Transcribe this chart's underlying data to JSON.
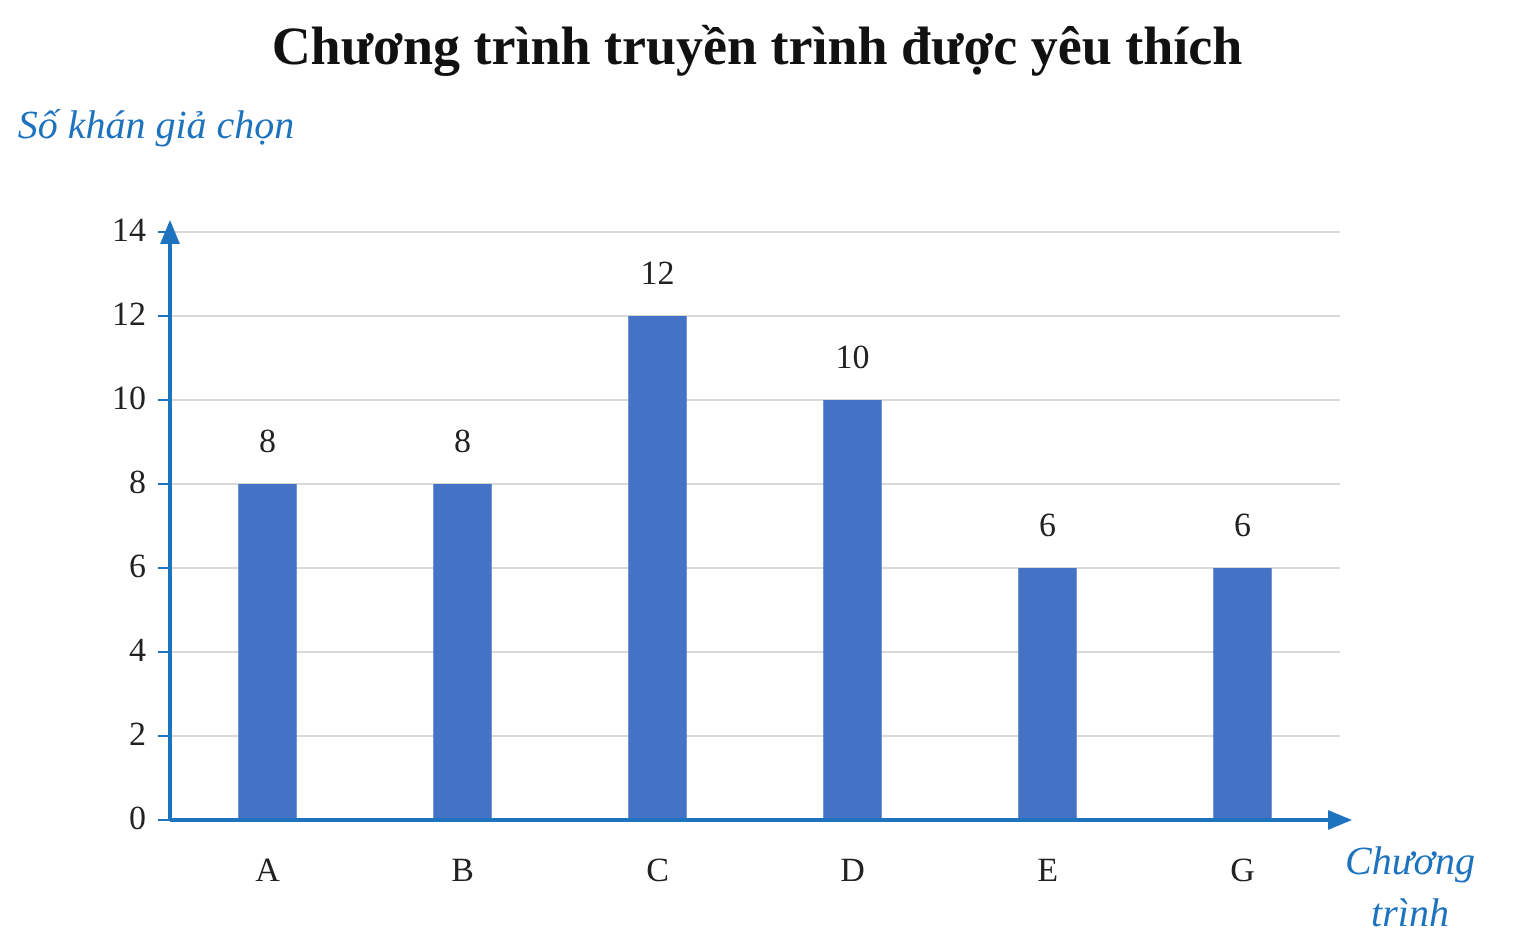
{
  "chart_data": {
    "type": "bar",
    "title": "Chương trình truyền trình được yêu thích",
    "xlabel": "Chương trình",
    "ylabel": "Số khán giả chọn",
    "categories": [
      "A",
      "B",
      "C",
      "D",
      "E",
      "G"
    ],
    "values": [
      8,
      8,
      12,
      10,
      6,
      6
    ],
    "color": "#4472c4",
    "ylim": [
      0,
      14
    ],
    "yticks": [
      0,
      2,
      4,
      6,
      8,
      10,
      12,
      14
    ],
    "grid": "y",
    "data_labels": true
  }
}
